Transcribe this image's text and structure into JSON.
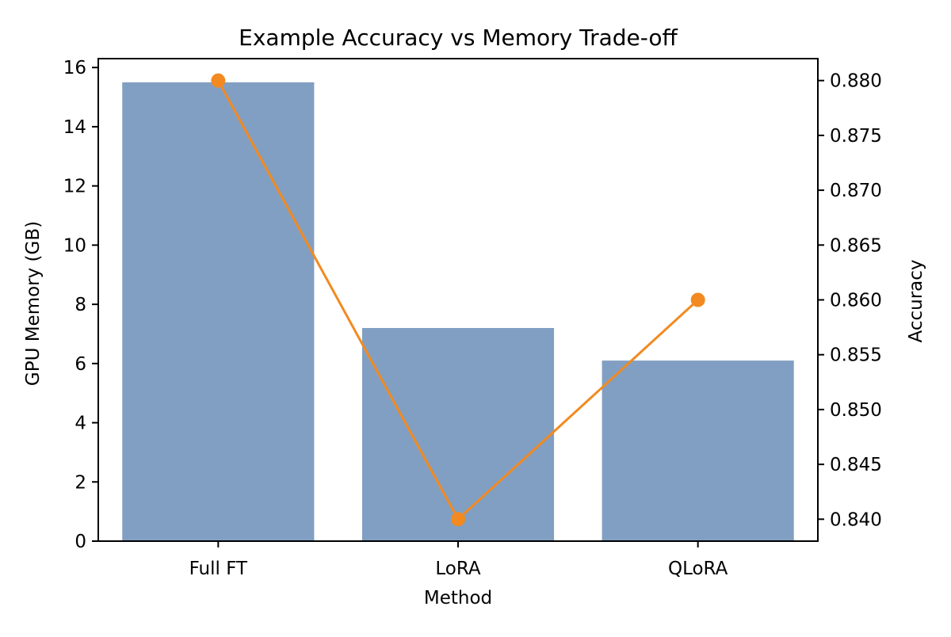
{
  "chart_data": {
    "type": "bar",
    "title": "Example Accuracy vs Memory Trade-off",
    "xlabel": "Method",
    "ylabel": "GPU Memory (GB)",
    "ylabel_right": "Accuracy",
    "categories": [
      "Full FT",
      "LoRA",
      "QLoRA"
    ],
    "series": [
      {
        "type": "bar",
        "axis": "left",
        "values": [
          15.5,
          7.2,
          6.1
        ],
        "color": "#819fc2"
      },
      {
        "type": "line",
        "axis": "right",
        "marker": "circle",
        "values": [
          0.88,
          0.84,
          0.86
        ],
        "color": "#f28a21"
      }
    ],
    "ylim": [
      0,
      16.3
    ],
    "yticks": [
      0,
      2,
      4,
      6,
      8,
      10,
      12,
      14,
      16
    ],
    "ytick_labels": [
      "0",
      "2",
      "4",
      "6",
      "8",
      "10",
      "12",
      "14",
      "16"
    ],
    "ylim_right": [
      0.838,
      0.882
    ],
    "yticks_right": [
      0.84,
      0.845,
      0.85,
      0.855,
      0.86,
      0.865,
      0.87,
      0.875,
      0.88
    ],
    "ytick_labels_right": [
      "0.840",
      "0.845",
      "0.850",
      "0.855",
      "0.860",
      "0.865",
      "0.870",
      "0.875",
      "0.880"
    ],
    "grid": false,
    "legend": "none"
  }
}
